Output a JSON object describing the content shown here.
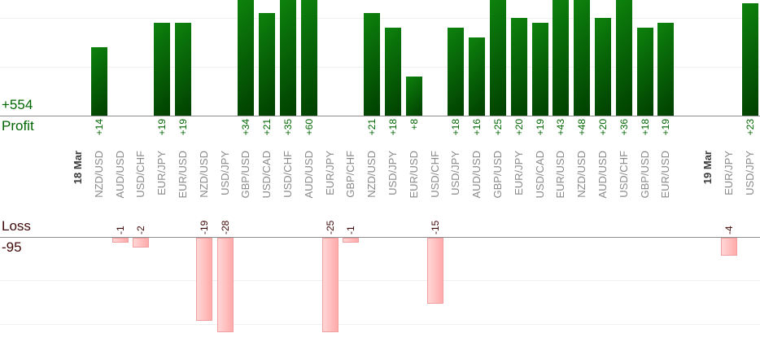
{
  "summary": {
    "profit_total": "+554",
    "profit_label": "Profit",
    "loss_label": "Loss",
    "loss_total": "-95"
  },
  "chart_data": {
    "type": "bar",
    "title": "",
    "orientation": "vertical",
    "grid": true,
    "gridline_step": 10,
    "profit_axis": {
      "label": "Profit",
      "total": 554,
      "baseline_value": 0,
      "visible_max": 23
    },
    "loss_axis": {
      "label": "Loss",
      "total": -95,
      "baseline_value": 0,
      "visible_min": -21
    },
    "colors": {
      "profit_bar_light": "#0d820d",
      "profit_bar_dark": "#003f00",
      "profit_text": "#006600",
      "loss_bar_light": "#ffd6d6",
      "loss_bar_deep": "#ffaaaa",
      "loss_bar_border": "#f0a0a0",
      "loss_text": "#400808",
      "pair_text": "#8a8a8a",
      "date_text": "#3c3c3c",
      "baseline": "#8c8c8c",
      "gridline": "#f0f0f0"
    },
    "columns": [
      {
        "label": "18 Mar",
        "kind": "date",
        "value": null
      },
      {
        "label": "NZD/USD",
        "kind": "pair",
        "value": 14
      },
      {
        "label": "AUD/USD",
        "kind": "pair",
        "value": -1
      },
      {
        "label": "USD/CHF",
        "kind": "pair",
        "value": -2
      },
      {
        "label": "EUR/JPY",
        "kind": "pair",
        "value": 19
      },
      {
        "label": "EUR/USD",
        "kind": "pair",
        "value": 19
      },
      {
        "label": "NZD/USD",
        "kind": "pair",
        "value": -19
      },
      {
        "label": "USD/JPY",
        "kind": "pair",
        "value": -28
      },
      {
        "label": "GBP/USD",
        "kind": "pair",
        "value": 34
      },
      {
        "label": "USD/CAD",
        "kind": "pair",
        "value": 21
      },
      {
        "label": "USD/CHF",
        "kind": "pair",
        "value": 35
      },
      {
        "label": "AUD/USD",
        "kind": "pair",
        "value": 60
      },
      {
        "label": "EUR/JPY",
        "kind": "pair",
        "value": -25
      },
      {
        "label": "GBP/CHF",
        "kind": "pair",
        "value": -1
      },
      {
        "label": "NZD/USD",
        "kind": "pair",
        "value": 21
      },
      {
        "label": "USD/JPY",
        "kind": "pair",
        "value": 18
      },
      {
        "label": "EUR/USD",
        "kind": "pair",
        "value": 8
      },
      {
        "label": "USD/CHF",
        "kind": "pair",
        "value": -15
      },
      {
        "label": "USD/JPY",
        "kind": "pair",
        "value": 18
      },
      {
        "label": "AUD/USD",
        "kind": "pair",
        "value": 16
      },
      {
        "label": "GBP/USD",
        "kind": "pair",
        "value": 25
      },
      {
        "label": "EUR/JPY",
        "kind": "pair",
        "value": 20
      },
      {
        "label": "USD/CAD",
        "kind": "pair",
        "value": 19
      },
      {
        "label": "EUR/USD",
        "kind": "pair",
        "value": 43
      },
      {
        "label": "NZD/USD",
        "kind": "pair",
        "value": 48
      },
      {
        "label": "AUD/USD",
        "kind": "pair",
        "value": 20
      },
      {
        "label": "USD/CHF",
        "kind": "pair",
        "value": 36
      },
      {
        "label": "GBP/USD",
        "kind": "pair",
        "value": 18
      },
      {
        "label": "EUR/USD",
        "kind": "pair",
        "value": 19
      },
      {
        "label": "",
        "kind": "gap",
        "value": null
      },
      {
        "label": "19 Mar",
        "kind": "date",
        "value": null
      },
      {
        "label": "EUR/JPY",
        "kind": "pair",
        "value": -4
      },
      {
        "label": "USD/JPY",
        "kind": "pair",
        "value": 23
      }
    ]
  }
}
